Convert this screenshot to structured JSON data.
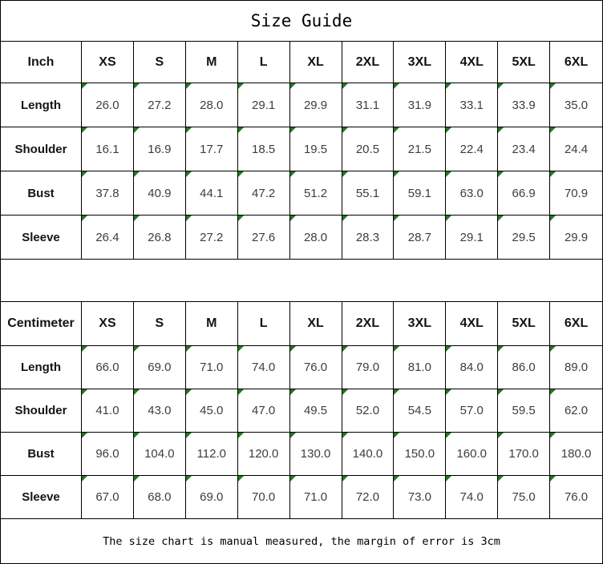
{
  "title": "Size Guide",
  "footer_note": "The size chart is manual measured, the margin of error is 3cm",
  "colors": {
    "border": "#000000",
    "background": "#ffffff",
    "corner_marker_green": "#1e7a1e",
    "header_text": "#141414",
    "value_text": "#3d3d3d"
  },
  "icons": {
    "corner_marker": "excel-style green triangle flag in top-left of each value cell"
  },
  "tables": [
    {
      "unit_label": "Inch",
      "sizes": [
        "XS",
        "S",
        "M",
        "L",
        "XL",
        "2XL",
        "3XL",
        "4XL",
        "5XL",
        "6XL"
      ],
      "rows": [
        {
          "label": "Length",
          "values": [
            "26.0",
            "27.2",
            "28.0",
            "29.1",
            "29.9",
            "31.1",
            "31.9",
            "33.1",
            "33.9",
            "35.0"
          ]
        },
        {
          "label": "Shoulder",
          "values": [
            "16.1",
            "16.9",
            "17.7",
            "18.5",
            "19.5",
            "20.5",
            "21.5",
            "22.4",
            "23.4",
            "24.4"
          ]
        },
        {
          "label": "Bust",
          "values": [
            "37.8",
            "40.9",
            "44.1",
            "47.2",
            "51.2",
            "55.1",
            "59.1",
            "63.0",
            "66.9",
            "70.9"
          ]
        },
        {
          "label": "Sleeve",
          "values": [
            "26.4",
            "26.8",
            "27.2",
            "27.6",
            "28.0",
            "28.3",
            "28.7",
            "29.1",
            "29.5",
            "29.9"
          ]
        }
      ]
    },
    {
      "unit_label": "Centimeter",
      "sizes": [
        "XS",
        "S",
        "M",
        "L",
        "XL",
        "2XL",
        "3XL",
        "4XL",
        "5XL",
        "6XL"
      ],
      "rows": [
        {
          "label": "Length",
          "values": [
            "66.0",
            "69.0",
            "71.0",
            "74.0",
            "76.0",
            "79.0",
            "81.0",
            "84.0",
            "86.0",
            "89.0"
          ]
        },
        {
          "label": "Shoulder",
          "values": [
            "41.0",
            "43.0",
            "45.0",
            "47.0",
            "49.5",
            "52.0",
            "54.5",
            "57.0",
            "59.5",
            "62.0"
          ]
        },
        {
          "label": "Bust",
          "values": [
            "96.0",
            "104.0",
            "112.0",
            "120.0",
            "130.0",
            "140.0",
            "150.0",
            "160.0",
            "170.0",
            "180.0"
          ]
        },
        {
          "label": "Sleeve",
          "values": [
            "67.0",
            "68.0",
            "69.0",
            "70.0",
            "71.0",
            "72.0",
            "73.0",
            "74.0",
            "75.0",
            "76.0"
          ]
        }
      ]
    }
  ]
}
